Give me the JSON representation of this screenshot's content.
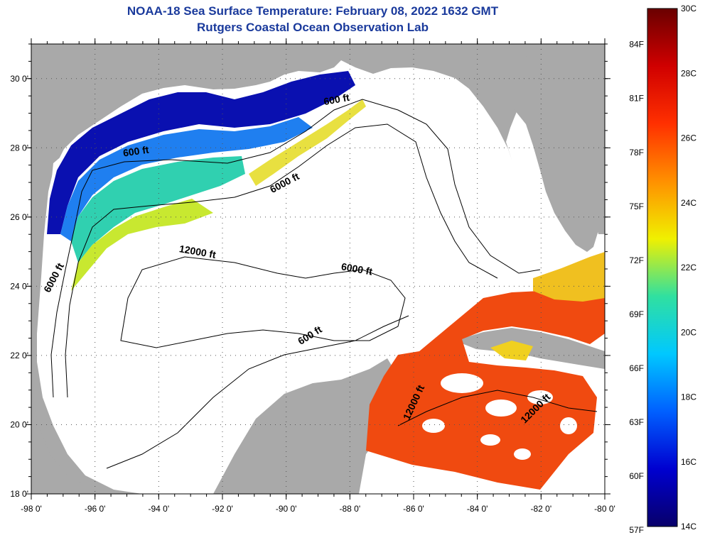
{
  "title": {
    "line1": "NOAA-18 Sea Surface Temperature:  February 08, 2022 1632 GMT",
    "line2": "Rutgers Coastal Ocean Observation Lab"
  },
  "colors": {
    "title": "#1a3a9c",
    "land": "#a9a9a9",
    "ocean_nodata": "#ffffff",
    "contour": "#000000"
  },
  "map": {
    "lon_ticks": [
      "-98 0'",
      "-96 0'",
      "-94 0'",
      "-92 0'",
      "-90 0'",
      "-88 0'",
      "-86 0'",
      "-84 0'",
      "-82 0'",
      "-80 0'"
    ],
    "lat_ticks": [
      "30 0'",
      "28 0'",
      "26 0'",
      "24 0'",
      "22 0'",
      "20 0'",
      "18 0'"
    ],
    "lon_range": [
      -98,
      -80
    ],
    "lat_range": [
      18,
      31
    ],
    "grid": "dotted",
    "contour_labels": [
      {
        "text": "600 ft",
        "lon": -94.7,
        "lat": 27.8,
        "angle": -8
      },
      {
        "text": "600 ft",
        "lon": -88.4,
        "lat": 29.3,
        "angle": -10
      },
      {
        "text": "6000 ft",
        "lon": -90.0,
        "lat": 26.9,
        "angle": -28
      },
      {
        "text": "12000 ft",
        "lon": -92.8,
        "lat": 24.9,
        "angle": 10
      },
      {
        "text": "6000 ft",
        "lon": -87.8,
        "lat": 24.4,
        "angle": 10
      },
      {
        "text": "6000 ft",
        "lon": -97.2,
        "lat": 24.2,
        "angle": -62
      },
      {
        "text": "600 ft",
        "lon": -89.2,
        "lat": 22.5,
        "angle": -32
      },
      {
        "text": "12000 ft",
        "lon": -85.9,
        "lat": 20.6,
        "angle": -65
      },
      {
        "text": "12000 ft",
        "lon": -82.1,
        "lat": 20.4,
        "angle": -45
      }
    ]
  },
  "colorbar": {
    "left_labels_f": [
      "84F",
      "81F",
      "78F",
      "75F",
      "72F",
      "69F",
      "66F",
      "63F",
      "60F",
      "57F"
    ],
    "right_labels_c": [
      "30C",
      "28C",
      "26C",
      "24C",
      "22C",
      "20C",
      "18C",
      "16C",
      "14C"
    ],
    "range_c": [
      14,
      30
    ],
    "stops": [
      "#08006a",
      "#0000d0",
      "#0060ff",
      "#00c8ff",
      "#30e0a0",
      "#f0f000",
      "#ff9000",
      "#ff3000",
      "#d00000",
      "#6a0000"
    ]
  }
}
